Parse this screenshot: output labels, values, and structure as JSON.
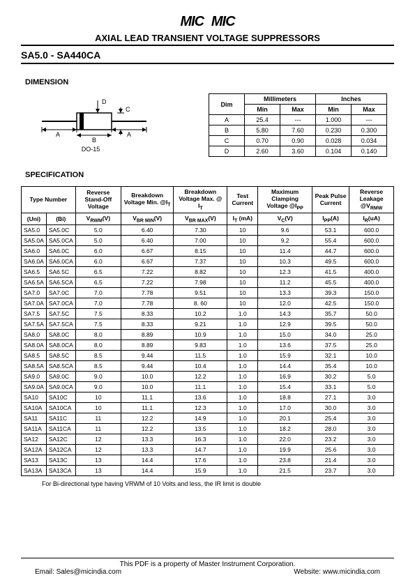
{
  "header": {
    "logo_text": "MIC",
    "title": "AXIAL LEAD TRANSIENT VOLTAGE SUPPRESSORS",
    "part_range": "SA5.0 - SA440CA"
  },
  "dimension": {
    "heading": "DIMENSION",
    "package_label": "DO-15",
    "table": {
      "head_dim": "Dim",
      "head_mm": "Millimeters",
      "head_in": "Inches",
      "head_min": "Min",
      "head_max": "Max",
      "rows": [
        {
          "dim": "A",
          "mm_min": "25.4",
          "mm_max": "---",
          "in_min": "1.000",
          "in_max": "---"
        },
        {
          "dim": "B",
          "mm_min": "5.80",
          "mm_max": "7.60",
          "in_min": "0.230",
          "in_max": "0.300"
        },
        {
          "dim": "C",
          "mm_min": "0.70",
          "mm_max": "0.90",
          "in_min": "0.028",
          "in_max": "0.034"
        },
        {
          "dim": "D",
          "mm_min": "2.60",
          "mm_max": "3.60",
          "in_min": "0.104",
          "in_max": "0.140"
        }
      ]
    }
  },
  "spec": {
    "heading": "SPECIFICATION",
    "headers": {
      "type_number": "Type Number",
      "uni": "(Uni)",
      "bi": "(Bi)",
      "rev_standoff": "Reverse Stand-Off Voltage",
      "vrwm": "V",
      "vrwm_sub": "RWM",
      "vrwm_unit": "(V)",
      "bd_min": "Breakdown Voltage Min. @I",
      "bd_min_sub": "T",
      "vbrmin": "V",
      "vbrmin_sub": "BR MIN",
      "bd_max": "Breakdown Voltage Max. @ I",
      "bd_max_sub": "T",
      "vbrmax": "V",
      "vbrmax_sub": "BR MAX",
      "test_current": "Test Current",
      "it": "I",
      "it_sub": "T",
      "it_unit": " (mA)",
      "max_clamp": "Maximum Clamping Voltage @I",
      "max_clamp_sub": "PP",
      "vc": "V",
      "vc_sub": "C",
      "vc_unit": "(V)",
      "peak_pulse": "Peak Pulse Current",
      "ipp": "I",
      "ipp_sub": "PP",
      "ipp_unit": "(A)",
      "rev_leak": "Reverse Leakage @V",
      "rev_leak_sub": "RMW",
      "ir": "I",
      "ir_sub": "R",
      "ir_unit": "(uA)"
    },
    "rows": [
      [
        "SA5.0",
        "SA5.0C",
        "5.0",
        "6.40",
        "7.30",
        "10",
        "9.6",
        "53.1",
        "600.0"
      ],
      [
        "SA5.0A",
        "SA5.0CA",
        "5.0",
        "6.40",
        "7.00",
        "10",
        "9.2",
        "55.4",
        "600.0"
      ],
      [
        "SA6.0",
        "SA6.0C",
        "6.0",
        "6.67",
        "8.15",
        "10",
        "11.4",
        "44.7",
        "600.0"
      ],
      [
        "SA6.0A",
        "SA6.0CA",
        "6.0",
        "6.67",
        "7.37",
        "10",
        "10.3",
        "49.5",
        "600.0"
      ],
      [
        "SA6.5",
        "SA6.5C",
        "6.5",
        "7.22",
        "8.82",
        "10",
        "12.3",
        "41.5",
        "400.0"
      ],
      [
        "SA6.5A",
        "SA6.5CA",
        "6.5",
        "7.22",
        "7.98",
        "10",
        "11.2",
        "45.5",
        "400.0"
      ],
      [
        "SA7.0",
        "SA7.0C",
        "7.0",
        "7.78",
        "9.51",
        "10",
        "13.3",
        "39.3",
        "150.0"
      ],
      [
        "SA7.0A",
        "SA7.0CA",
        "7.0",
        "7.78",
        "8. 60",
        "10",
        "12.0",
        "42.5",
        "150.0"
      ],
      [
        "SA7.5",
        "SA7.5C",
        "7.5",
        "8.33",
        "10.2",
        "1.0",
        "14.3",
        "35.7",
        "50.0"
      ],
      [
        "SA7.5A",
        "SA7.5CA",
        "7.5",
        "8.33",
        "9.21",
        "1.0",
        "12.9",
        "39.5",
        "50.0"
      ],
      [
        "SA8.0",
        "SA8.0C",
        "8.0",
        "8.89",
        "10.9",
        "1.0",
        "15.0",
        "34.0",
        "25.0"
      ],
      [
        "SA8.0A",
        "SA8.0CA",
        "8.0",
        "8.89",
        "9.83",
        "1.0",
        "13.6",
        "37.5",
        "25.0"
      ],
      [
        "SA8.5",
        "SA8.5C",
        "8.5",
        "9.44",
        "11.5",
        "1.0",
        "15.9",
        "32.1",
        "10.0"
      ],
      [
        "SA8.5A",
        "SA8.5CA",
        "8.5",
        "9.44",
        "10.4",
        "1.0",
        "14.4",
        "35.4",
        "10.0"
      ],
      [
        "SA9.0",
        "SA9.0C",
        "9.0",
        "10.0",
        "12.2",
        "1.0",
        "16.9",
        "30.2",
        "5.0"
      ],
      [
        "SA9.0A",
        "SA9.0CA",
        "9.0",
        "10.0",
        "11.1",
        "1.0",
        "15.4",
        "33.1",
        "5.0"
      ],
      [
        "SA10",
        "SA10C",
        "10",
        "11.1",
        "13.6",
        "1.0",
        "18.8",
        "27.1",
        "3.0"
      ],
      [
        "SA10A",
        "SA10CA",
        "10",
        "11.1",
        "12.3",
        "1.0",
        "17.0",
        "30.0",
        "3.0"
      ],
      [
        "SA11",
        "SA11C",
        "11",
        "12.2",
        "14.9",
        "1.0",
        "20.1",
        "25.4",
        "3.0"
      ],
      [
        "SA11A",
        "SA11CA",
        "11",
        "12.2",
        "13.5",
        "1.0",
        "18.2",
        "28.0",
        "3.0"
      ],
      [
        "SA12",
        "SA12C",
        "12",
        "13.3",
        "16.3",
        "1.0",
        "22.0",
        "23.2",
        "3.0"
      ],
      [
        "SA12A",
        "SA12CA",
        "12",
        "13.3",
        "14.7",
        "1.0",
        "19.9",
        "25.6",
        "3.0"
      ],
      [
        "SA13",
        "SA13C",
        "13",
        "14.4",
        "17.6",
        "1.0",
        "23.8",
        "21.4",
        "3.0"
      ],
      [
        "SA13A",
        "SA13CA",
        "13",
        "14.4",
        "15.9",
        "1.0",
        "21.5",
        "23.7",
        "3.0"
      ]
    ],
    "note": "For Bi-directional type having VRWM of 10 Volts and less, the IR limit is double"
  },
  "footer": {
    "line1": "This PDF is a property of Master Instrument Corporation.",
    "email_label": "Email: ",
    "email": "Sales@micindia.com",
    "website_label": "Website: ",
    "website": "www.micindia.com"
  }
}
